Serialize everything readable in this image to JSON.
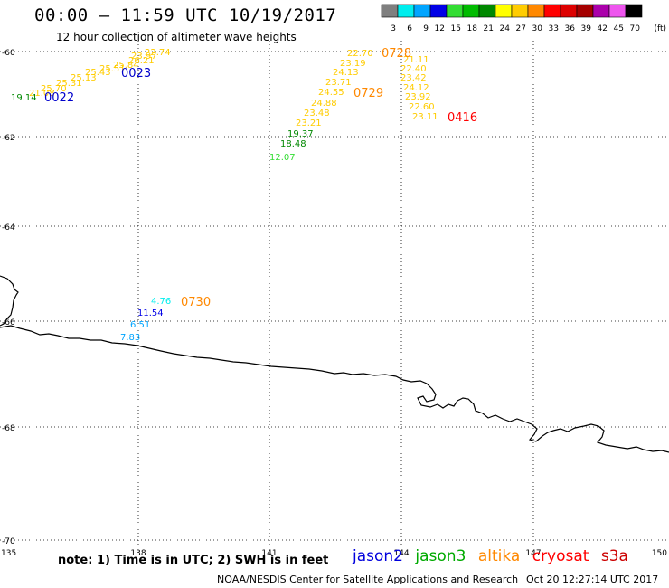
{
  "title": "00:00 – 11:59 UTC 10/19/2017",
  "subtitle": "12 hour collection of altimeter wave heights",
  "legend": {
    "unit": "(ft)",
    "swatches": [
      {
        "label": "3",
        "color": "#7f7f7f"
      },
      {
        "label": "6",
        "color": "#00eeee"
      },
      {
        "label": "9",
        "color": "#00a5ff"
      },
      {
        "label": "12",
        "color": "#0000e6"
      },
      {
        "label": "15",
        "color": "#33dd33"
      },
      {
        "label": "18",
        "color": "#00bb00"
      },
      {
        "label": "21",
        "color": "#008800"
      },
      {
        "label": "24",
        "color": "#ffff00"
      },
      {
        "label": "27",
        "color": "#ffcc00"
      },
      {
        "label": "30",
        "color": "#ff8800"
      },
      {
        "label": "33",
        "color": "#ff0000"
      },
      {
        "label": "36",
        "color": "#dd0000"
      },
      {
        "label": "39",
        "color": "#a50000"
      },
      {
        "label": "42",
        "color": "#aa00aa"
      },
      {
        "label": "45",
        "color": "#ee55ee"
      },
      {
        "label": "70",
        "color": "#000000"
      }
    ]
  },
  "axes": {
    "lat_labels": [
      "-60",
      "-62",
      "-64",
      "-66",
      "-68",
      "-70"
    ],
    "lon_labels": [
      "135",
      "138",
      "141",
      "144",
      "147",
      "150"
    ]
  },
  "wave_heights": [
    {
      "text": "19.14",
      "color": "#008800"
    },
    {
      "text": "21.08",
      "color": "#ffcc00"
    },
    {
      "text": "25.70",
      "color": "#ffcc00"
    },
    {
      "text": "25.31",
      "color": "#ffcc00"
    },
    {
      "text": "25.13",
      "color": "#ffcc00"
    },
    {
      "text": "25.43",
      "color": "#ffcc00"
    },
    {
      "text": "25.51",
      "color": "#ffcc00"
    },
    {
      "text": "25.84",
      "color": "#ffcc00"
    },
    {
      "text": "26.21",
      "color": "#ffcc00"
    },
    {
      "text": "23.97",
      "color": "#ffcc00"
    },
    {
      "text": "22.74",
      "color": "#ffcc00"
    },
    {
      "text": "22.70",
      "color": "#ffcc00"
    },
    {
      "text": "23.19",
      "color": "#ffcc00"
    },
    {
      "text": "24.13",
      "color": "#ffcc00"
    },
    {
      "text": "23.71",
      "color": "#ffcc00"
    },
    {
      "text": "24.55",
      "color": "#ffcc00"
    },
    {
      "text": "24.88",
      "color": "#ffcc00"
    },
    {
      "text": "23.48",
      "color": "#ffcc00"
    },
    {
      "text": "23.21",
      "color": "#ffcc00"
    },
    {
      "text": "19.37",
      "color": "#008800"
    },
    {
      "text": "18.48",
      "color": "#008800"
    },
    {
      "text": "12.07",
      "color": "#33dd33"
    },
    {
      "text": "21.11",
      "color": "#ffcc00"
    },
    {
      "text": "22.40",
      "color": "#ffcc00"
    },
    {
      "text": "23.42",
      "color": "#ffcc00"
    },
    {
      "text": "24.12",
      "color": "#ffcc00"
    },
    {
      "text": "23.92",
      "color": "#ffcc00"
    },
    {
      "text": "22.60",
      "color": "#ffcc00"
    },
    {
      "text": "23.11",
      "color": "#ffcc00"
    },
    {
      "text": "4.76",
      "color": "#00eeee"
    },
    {
      "text": "11.54",
      "color": "#0000e6"
    },
    {
      "text": "6.51",
      "color": "#00a5ff"
    },
    {
      "text": "7.83",
      "color": "#00a5ff"
    }
  ],
  "pass_times": [
    {
      "text": "0022",
      "color": "#0000cc"
    },
    {
      "text": "0023",
      "color": "#0000cc"
    },
    {
      "text": "0728",
      "color": "#ff8800"
    },
    {
      "text": "0729",
      "color": "#ff8800"
    },
    {
      "text": "0416",
      "color": "#ff0000"
    },
    {
      "text": "0730",
      "color": "#ff8800"
    }
  ],
  "note": "note: 1) Time is in UTC; 2) SWH is in feet",
  "satellites": [
    {
      "name": "jason2",
      "color": "#0000dd"
    },
    {
      "name": "jason3",
      "color": "#00aa00"
    },
    {
      "name": "altika",
      "color": "#ff8800"
    },
    {
      "name": "cryosat",
      "color": "#ff0000"
    },
    {
      "name": "s3a",
      "color": "#cc0000"
    }
  ],
  "footer_left": "NOAA/NESDIS Center for Satellite Applications and Research",
  "footer_right": "Oct 20 12:27:14 UTC 2017"
}
